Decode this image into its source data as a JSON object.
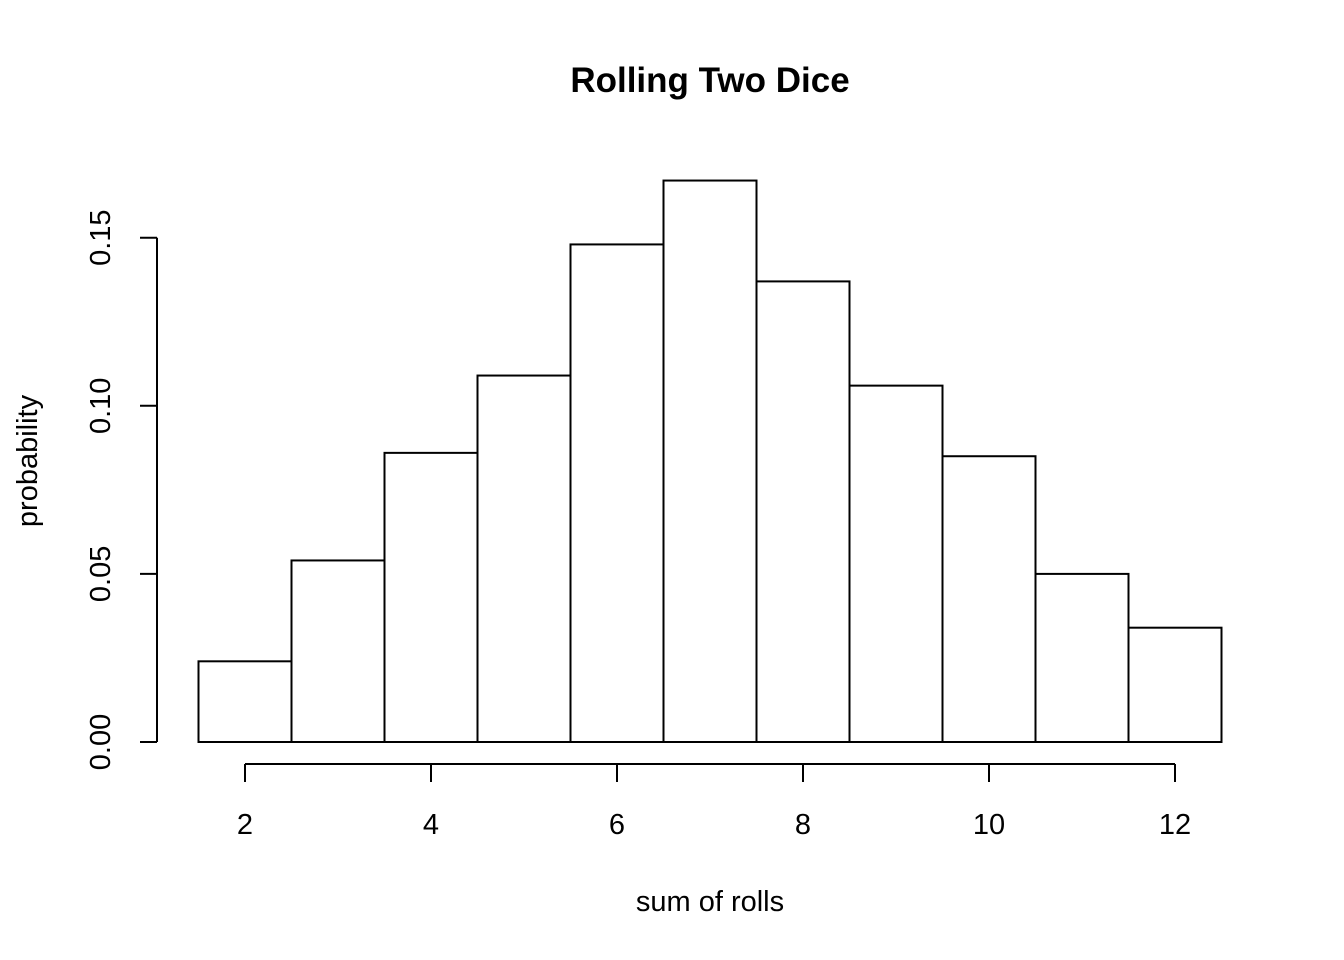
{
  "chart_data": {
    "type": "bar",
    "title": "Rolling Two Dice",
    "xlabel": "sum of rolls",
    "ylabel": "probability",
    "categories": [
      2,
      3,
      4,
      5,
      6,
      7,
      8,
      9,
      10,
      11,
      12
    ],
    "values": [
      0.024,
      0.054,
      0.086,
      0.109,
      0.148,
      0.167,
      0.137,
      0.106,
      0.085,
      0.05,
      0.034
    ],
    "xlim": [
      1.5,
      12.5
    ],
    "ylim": [
      0,
      0.17
    ],
    "x_ticks": [
      "2",
      "4",
      "6",
      "8",
      "10",
      "12"
    ],
    "y_ticks": [
      "0.00",
      "0.05",
      "0.10",
      "0.15"
    ],
    "grid": false,
    "bar_fill": "#ffffff",
    "bar_stroke": "#000000"
  }
}
